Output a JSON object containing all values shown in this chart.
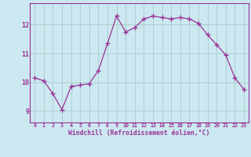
{
  "x": [
    0,
    1,
    2,
    3,
    4,
    5,
    6,
    7,
    8,
    9,
    10,
    11,
    12,
    13,
    14,
    15,
    16,
    17,
    18,
    19,
    20,
    21,
    22,
    23
  ],
  "y": [
    10.15,
    10.05,
    9.6,
    9.05,
    9.85,
    9.9,
    9.95,
    10.4,
    11.35,
    12.3,
    11.75,
    11.9,
    12.2,
    12.3,
    12.25,
    12.2,
    12.25,
    12.2,
    12.05,
    11.65,
    11.3,
    10.95,
    10.15,
    9.75
  ],
  "line_color": "#993399",
  "marker": "+",
  "marker_size": 4,
  "marker_lw": 1.0,
  "bg_color": "#cce8f0",
  "grid_color": "#aacccc",
  "xlabel": "Windchill (Refroidissement éolien,°C)",
  "xlabel_color": "#993399",
  "tick_color": "#993399",
  "ylabel_ticks": [
    9,
    10,
    11,
    12
  ],
  "xlim": [
    -0.5,
    23.5
  ],
  "ylim": [
    8.6,
    12.75
  ],
  "xticks": [
    0,
    1,
    2,
    3,
    4,
    5,
    6,
    7,
    8,
    9,
    10,
    11,
    12,
    13,
    14,
    15,
    16,
    17,
    18,
    19,
    20,
    21,
    22,
    23
  ]
}
